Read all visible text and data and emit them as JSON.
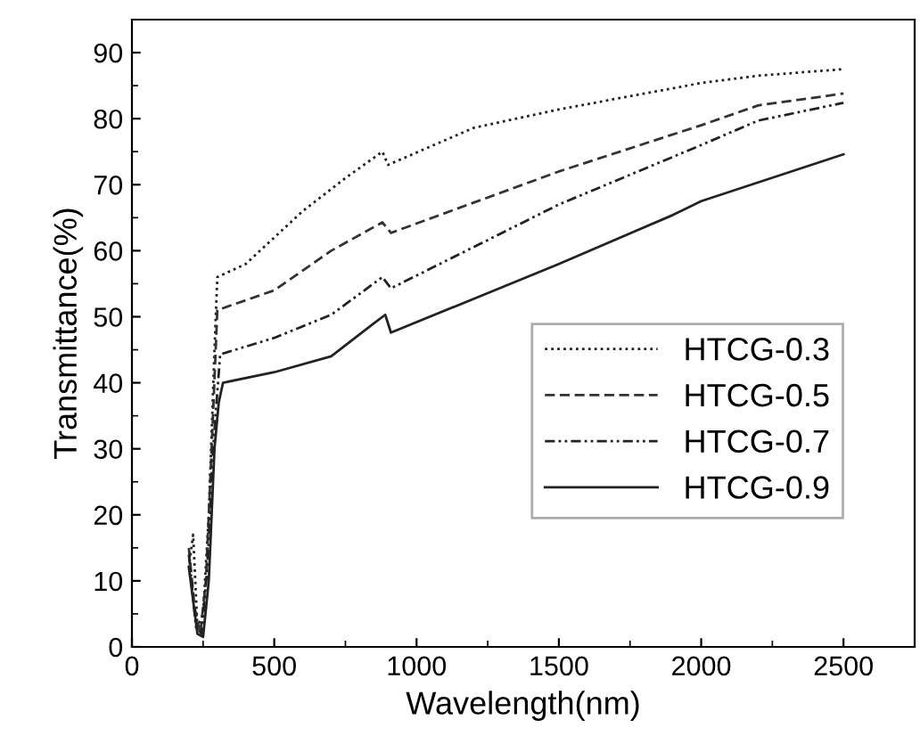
{
  "chart_data": {
    "type": "line",
    "xlabel": "Wavelength(nm)",
    "ylabel": "Transmittance(%)",
    "xlim": [
      0,
      2750
    ],
    "ylim": [
      0,
      95
    ],
    "xticks": [
      0,
      500,
      1000,
      1500,
      2000,
      2500
    ],
    "yticks": [
      0,
      10,
      20,
      30,
      40,
      50,
      60,
      70,
      80,
      90
    ],
    "grid": false,
    "legend": "center right",
    "marker": "none",
    "series": [
      {
        "name": "HTCG-0.3",
        "color": "#222222",
        "line_style": "dotted",
        "x": [
          200,
          215,
          230,
          250,
          270,
          290,
          300,
          400,
          600,
          750,
          880,
          900,
          1200,
          1500,
          2000,
          2200,
          2500
        ],
        "values": [
          12,
          17,
          3,
          5,
          20,
          45,
          56,
          58,
          66,
          71,
          75,
          73,
          78.6,
          81.4,
          85.4,
          86.5,
          87.5
        ]
      },
      {
        "name": "HTCG-0.5",
        "color": "#333333",
        "line_style": "dashed",
        "x": [
          200,
          220,
          240,
          260,
          280,
          300,
          500,
          700,
          880,
          910,
          1500,
          2000,
          2200,
          2500
        ],
        "values": [
          15,
          6,
          2,
          10,
          30,
          51,
          54,
          60,
          64.3,
          62.7,
          72,
          79,
          82,
          83.8
        ]
      },
      {
        "name": "HTCG-0.7",
        "color": "#222222",
        "line_style": "dashdot",
        "x": [
          200,
          225,
          245,
          265,
          285,
          310,
          500,
          700,
          880,
          910,
          1500,
          2000,
          2200,
          2500
        ],
        "values": [
          14,
          3,
          2,
          12,
          30,
          44.3,
          46.8,
          50.3,
          56,
          54.3,
          67,
          76,
          79.7,
          82.4
        ]
      },
      {
        "name": "HTCG-0.9",
        "color": "#222222",
        "line_style": "solid",
        "x": [
          200,
          230,
          250,
          270,
          290,
          305,
          320,
          500,
          700,
          850,
          890,
          910,
          1200,
          1500,
          1900,
          2000,
          2500
        ],
        "values": [
          12,
          2,
          1.5,
          10,
          30,
          37,
          40,
          41.6,
          44,
          49,
          50.3,
          47.6,
          52.7,
          58,
          65.4,
          67.5,
          74.6
        ]
      }
    ]
  }
}
